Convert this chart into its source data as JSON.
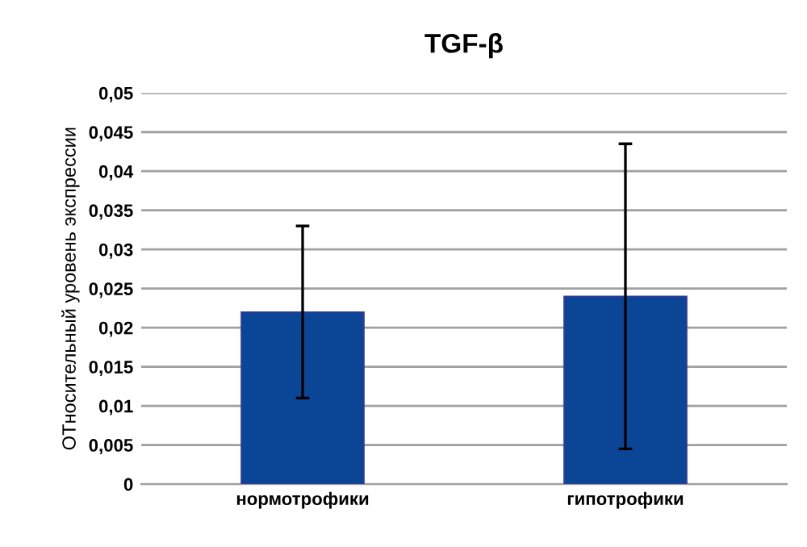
{
  "chart_data": {
    "type": "bar",
    "title": "TGF-β",
    "ylabel": "ОТносительный уровень экспрессии",
    "categories": [
      "нормотрофики",
      "гипотрофики"
    ],
    "values": [
      0.022,
      0.024
    ],
    "errors": [
      0.011,
      0.0195
    ],
    "color": "#0a4596",
    "ylim": [
      0,
      0.05
    ],
    "yticks": [
      {
        "value": 0,
        "label": "0"
      },
      {
        "value": 0.005,
        "label": "0,005"
      },
      {
        "value": 0.01,
        "label": "0,01"
      },
      {
        "value": 0.015,
        "label": "0,015"
      },
      {
        "value": 0.02,
        "label": "0,02"
      },
      {
        "value": 0.025,
        "label": "0,025"
      },
      {
        "value": 0.03,
        "label": "0,03"
      },
      {
        "value": 0.035,
        "label": "0,035"
      },
      {
        "value": 0.04,
        "label": "0,04"
      },
      {
        "value": 0.045,
        "label": "0,045"
      },
      {
        "value": 0.05,
        "label": "0,05"
      }
    ],
    "grid": "y"
  }
}
